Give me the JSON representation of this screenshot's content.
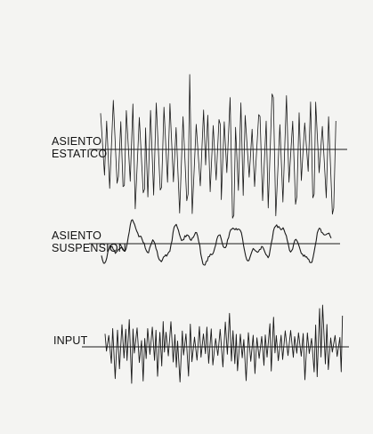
{
  "background_color": "#f4f4f2",
  "ink_color": "#1a1a1a",
  "traces": [
    {
      "id": "asiento-estatico",
      "label_lines": [
        "ASIENTO",
        "ESTATICO"
      ]
    },
    {
      "id": "asiento-suspension",
      "label_lines": [
        "ASIENTO",
        "SUSPENSION"
      ]
    },
    {
      "id": "input",
      "label_lines": [
        "INPUT"
      ]
    }
  ]
}
